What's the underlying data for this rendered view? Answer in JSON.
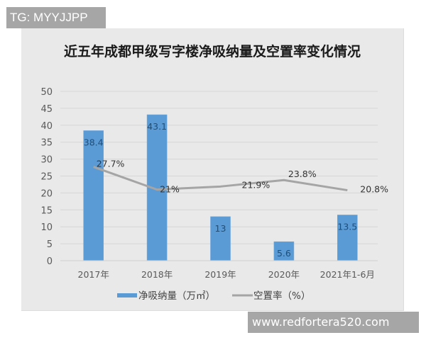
{
  "watermarks": {
    "top_left": "TG: MYYJJPP",
    "bottom_right": "www.redfortera520.com"
  },
  "colors": {
    "frame_bg": "#e9e9e9",
    "bar": "#5b9bd5",
    "bar_label": "#1f4e79",
    "line": "#a5a5a5",
    "gridline": "#d6d6d6",
    "axis_text": "#595959",
    "watermark_bg": "#a6a6a6"
  },
  "chart_data": {
    "type": "bar+line",
    "title": "近五年成都甲级写字楼净吸纳量及空置率变化情况",
    "categories": [
      "2017年",
      "2018年",
      "2019年",
      "2020年",
      "2021年1-6月"
    ],
    "series": [
      {
        "name": "净吸纳量（万㎡）",
        "type": "bar",
        "values": [
          38.4,
          43.1,
          13,
          5.6,
          13.5
        ],
        "labels": [
          "38.4",
          "43.1",
          "13",
          "5.6",
          "13.5"
        ]
      },
      {
        "name": "空置率（%）",
        "type": "line",
        "values": [
          27.7,
          21,
          21.9,
          23.8,
          20.8
        ],
        "labels": [
          "27.7%",
          "21%",
          "21.9%",
          "23.8%",
          "20.8%"
        ]
      }
    ],
    "xlabel": "",
    "ylabel": "",
    "ylim": [
      0,
      50
    ],
    "yticks": [
      0,
      5,
      10,
      15,
      20,
      25,
      30,
      35,
      40,
      45,
      50
    ],
    "grid": true,
    "legend_position": "bottom",
    "legend": [
      "净吸纳量（万㎡）",
      "空置率（%）"
    ]
  }
}
